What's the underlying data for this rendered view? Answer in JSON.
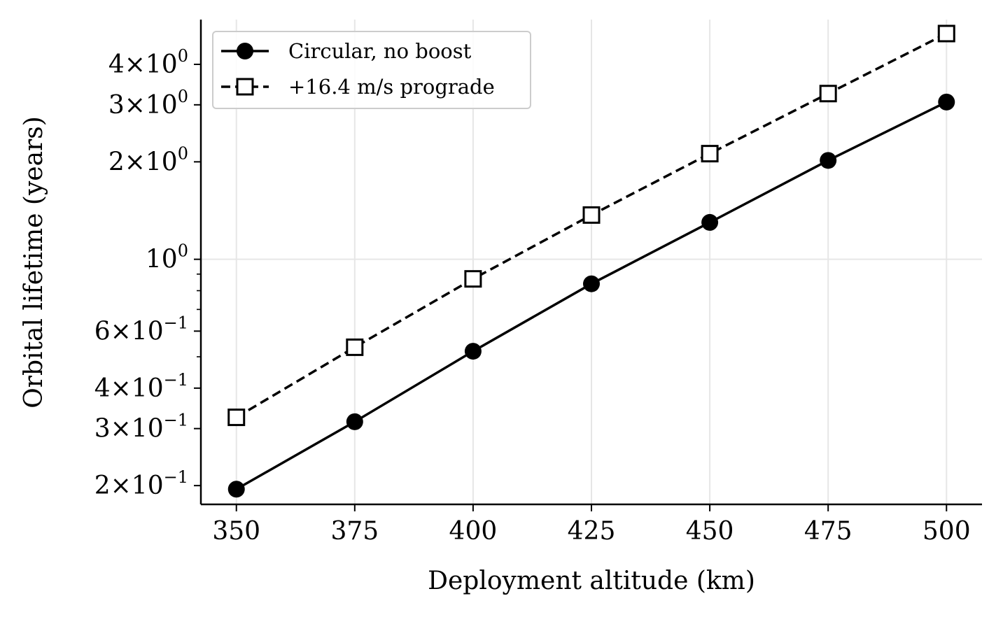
{
  "chart_data": {
    "type": "line",
    "xlabel": "Deployment altitude (km)",
    "ylabel": "Orbital lifetime (years)",
    "x": [
      350,
      375,
      400,
      425,
      450,
      475,
      500
    ],
    "xlim": [
      342.5,
      507.5
    ],
    "ylim": [
      0.175,
      5.5
    ],
    "yscale": "log",
    "x_ticks": [
      "350",
      "375",
      "400",
      "425",
      "450",
      "475",
      "500"
    ],
    "y_ticks": [
      {
        "value": 0.2,
        "mantissa": "2",
        "exponent": "−1"
      },
      {
        "value": 0.3,
        "mantissa": "3",
        "exponent": "−1"
      },
      {
        "value": 0.4,
        "mantissa": "4",
        "exponent": "−1"
      },
      {
        "value": 0.6,
        "mantissa": "6",
        "exponent": "−1"
      },
      {
        "value": 1,
        "mantissa": "",
        "exponent": "0"
      },
      {
        "value": 2,
        "mantissa": "2",
        "exponent": "0"
      },
      {
        "value": 3,
        "mantissa": "3",
        "exponent": "0"
      },
      {
        "value": 4,
        "mantissa": "4",
        "exponent": "0"
      }
    ],
    "grid": true,
    "legend_position": "top-left",
    "series": [
      {
        "name": "Circular, no boost",
        "values": [
          0.195,
          0.315,
          0.52,
          0.84,
          1.3,
          2.02,
          3.06
        ],
        "marker": "circle-filled",
        "line": "solid",
        "color": "#000000"
      },
      {
        "name": "+16.4 m/s prograde",
        "values": [
          0.325,
          0.535,
          0.87,
          1.37,
          2.12,
          3.25,
          4.98
        ],
        "marker": "square-open",
        "line": "dashed",
        "color": "#000000"
      }
    ]
  }
}
